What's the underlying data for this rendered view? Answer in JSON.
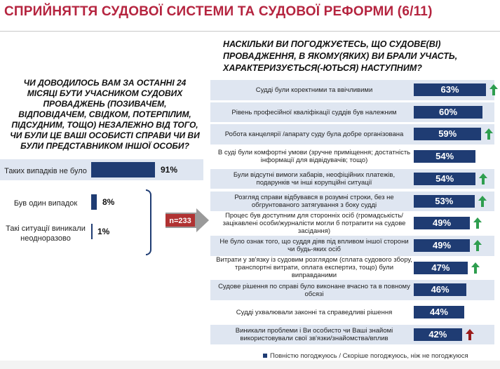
{
  "title": "СПРИЙНЯТТЯ СУДОВОЇ СИСТЕМИ ТА СУДОВОЇ РЕФОРМИ (6/11)",
  "left_question": "ЧИ ДОВОДИЛОСЬ ВАМ ЗА ОСТАННІ 24 МІСЯЦІ БУТИ УЧАСНИКОМ СУДОВИХ ПРОВАДЖЕНЬ (ПОЗИВАЧЕМ, ВІДПОВІДАЧЕМ, СВІДКОМ, ПОТЕРПІЛИМ, ПІДСУДНИМ, ТОЩО) НЕЗАЛЕЖНО ВІД ТОГО, ЧИ БУЛИ ЦЕ ВАШІ ОСОБИСТІ СПРАВИ ЧИ ВИ БУЛИ ПРЕДСТАВНИКОМ ІНШОЇ ОСОБИ?",
  "right_question": "НАСКІЛЬКИ ВИ ПОГОДЖУЄТЕСЬ, ЩО СУДОВЕ(ВІ) ПРОВАДЖЕННЯ, В ЯКОМУ(ЯКИХ) ВИ БРАЛИ УЧАСТЬ, ХАРАКТЕРИЗУЄТЬСЯ(-ЮТЬСЯ) НАСТУПНИМ?",
  "sample": "n=233",
  "legend": "Повністю погоджуюсь / Скоріше погоджуюсь, ніж не погоджуюся",
  "colors": {
    "bar": "#1f3c73",
    "up": "#2e9e4f",
    "down": "#9b1b1b",
    "title": "#b5243f"
  },
  "chart_data": [
    {
      "type": "bar",
      "orientation": "horizontal",
      "categories": [
        "Таких випадків не було",
        "Був один випадок",
        "Такі ситуації виникали неодноразово"
      ],
      "values": [
        91,
        8,
        1
      ],
      "labels": [
        "91%",
        "8%",
        "1%"
      ],
      "xlim": [
        0,
        100
      ]
    },
    {
      "type": "bar",
      "orientation": "horizontal",
      "categories": [
        "Судді були коректними та ввічливими",
        "Рівень професійної кваліфікації суддів був належним",
        "Робота канцелярії /апарату суду була добре організована",
        "В суді були комфортні умови (зручне приміщення; достатність інформації для відвідувачів; тощо)",
        "Були відсутні вимоги хабарів, неофіційних платежів, подарунків чи інші корупційні ситуації",
        "Розгляд справи відбувався в розумні строки, без не обгрунтованого затягування з боку судді",
        "Процес був доступним для сторонніх осіб (громадськість/зацікавлені особи/журналісти могли б потрапити на судове засідання)",
        "Не було ознак того, що суддя діяв під впливом іншої сторони чи будь-яких осіб",
        "Витрати у зв'язку із судовим розглядом (сплата судового збору, транспортні витрати, оплата експертиз, тощо) були виправданими",
        "Судове рішення по справі було виконане вчасно та в повному обсязі",
        "Судді ухвалювали законні та справедливі рішення",
        "Виникали проблеми і Ви особисто чи Ваші знайомі використовували свої зв'язки/знайомства/вплив"
      ],
      "values": [
        63,
        60,
        59,
        54,
        54,
        53,
        49,
        49,
        47,
        46,
        44,
        42
      ],
      "labels": [
        "63%",
        "60%",
        "59%",
        "54%",
        "54%",
        "53%",
        "49%",
        "49%",
        "47%",
        "46%",
        "44%",
        "42%"
      ],
      "trend": [
        "up",
        "none",
        "up",
        "none",
        "up",
        "up",
        "up",
        "up",
        "up",
        "none",
        "none",
        "down"
      ],
      "xlim": [
        0,
        100
      ]
    }
  ]
}
